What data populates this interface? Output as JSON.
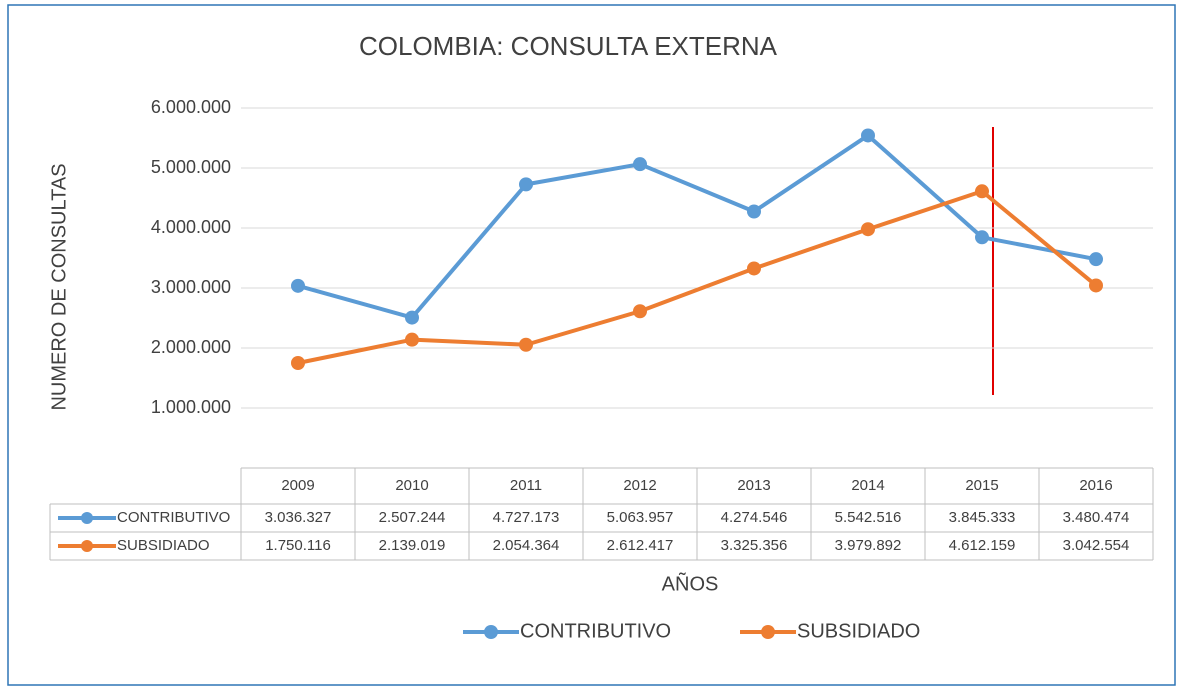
{
  "chart_data": {
    "type": "line",
    "title": "COLOMBIA: CONSULTA EXTERNA",
    "xlabel": "AÑOS",
    "ylabel": "NUMERO DE CONSULTAS",
    "categories": [
      "2009",
      "2010",
      "2011",
      "2012",
      "2013",
      "2014",
      "2015",
      "2016"
    ],
    "series": [
      {
        "name": "CONTRIBUTIVO",
        "color": "#5b9bd5",
        "values": [
          3036327,
          2507244,
          4727173,
          5063957,
          4274546,
          5542516,
          3845333,
          3480474
        ],
        "value_labels": [
          "3.036.327",
          "2.507.244",
          "4.727.173",
          "5.063.957",
          "4.274.546",
          "5.542.516",
          "3.845.333",
          "3.480.474"
        ]
      },
      {
        "name": "SUBSIDIADO",
        "color": "#ed7d31",
        "values": [
          1750116,
          2139019,
          2054364,
          2612417,
          3325356,
          3979892,
          4612159,
          3042554
        ],
        "value_labels": [
          "1.750.116",
          "2.139.019",
          "2.054.364",
          "2.612.417",
          "3.325.356",
          "3.979.892",
          "4.612.159",
          "3.042.554"
        ]
      }
    ],
    "ylim": [
      0,
      6000000
    ],
    "yticks": [
      {
        "value": 1000000,
        "label": "1.000.000"
      },
      {
        "value": 2000000,
        "label": "2.000.000"
      },
      {
        "value": 3000000,
        "label": "3.000.000"
      },
      {
        "value": 4000000,
        "label": "4.000.000"
      },
      {
        "value": 5000000,
        "label": "5.000.000"
      },
      {
        "value": 6000000,
        "label": "6.000.000"
      }
    ],
    "grid": true,
    "legend": "bottom",
    "data_table": true
  }
}
